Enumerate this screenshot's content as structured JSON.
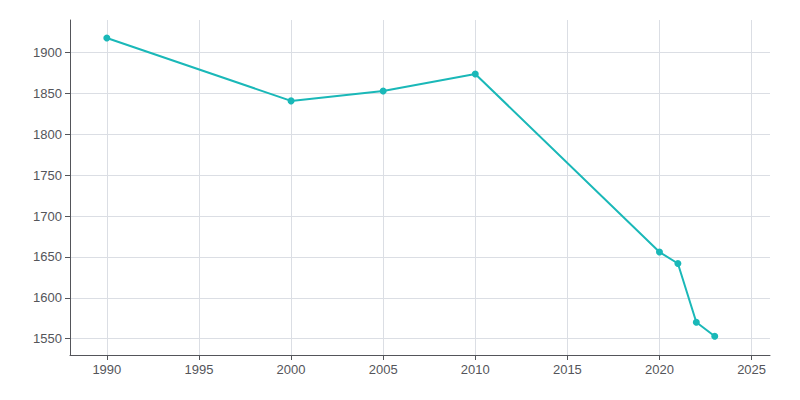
{
  "chart_data": {
    "type": "line",
    "x": [
      1990,
      2000,
      2005,
      2010,
      2020,
      2021,
      2022,
      2023
    ],
    "values": [
      1918,
      1841,
      1853,
      1874,
      1656,
      1642,
      1570,
      1553
    ],
    "color": "#1ab8b8",
    "marker": "circle",
    "xlim": [
      1988,
      2026
    ],
    "ylim": [
      1530,
      1940
    ],
    "xticks": [
      1990,
      1995,
      2000,
      2005,
      2010,
      2015,
      2020,
      2025
    ],
    "yticks": [
      1550,
      1600,
      1650,
      1700,
      1750,
      1800,
      1850,
      1900
    ],
    "grid": true
  }
}
